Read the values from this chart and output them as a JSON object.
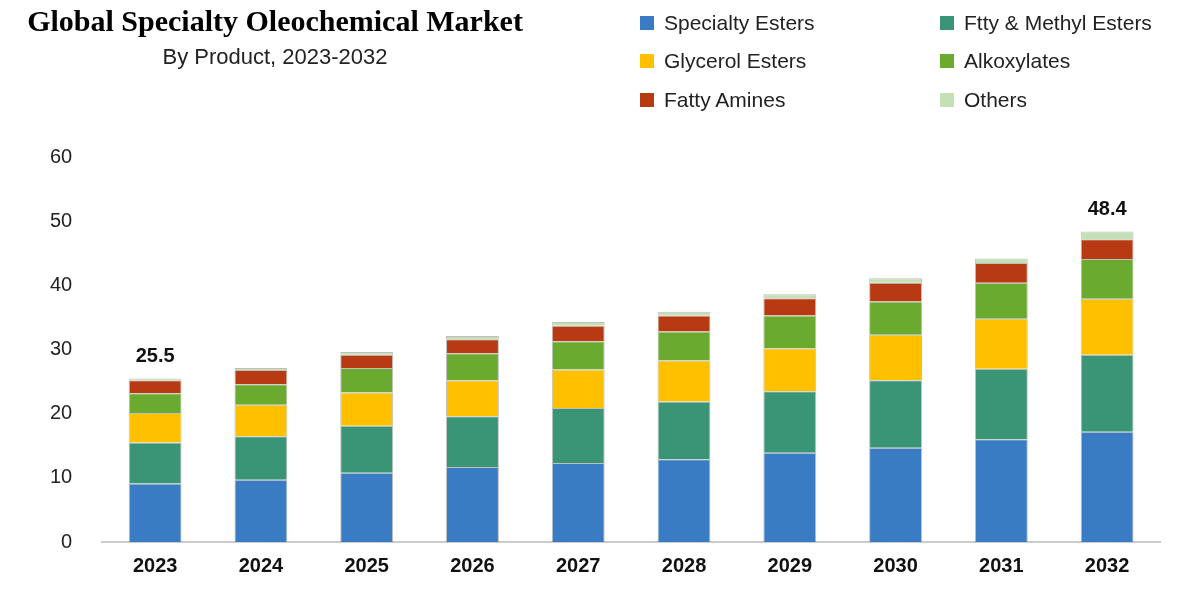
{
  "chart_data": {
    "type": "bar",
    "title": "Global Specialty Oleochemical Market",
    "subtitle": "By Product, 2023-2032",
    "categories": [
      "2023",
      "2024",
      "2025",
      "2026",
      "2027",
      "2028",
      "2029",
      "2030",
      "2031",
      "2032"
    ],
    "stacked": true,
    "legend": "top right",
    "grid": false,
    "ylim": [
      0,
      60
    ],
    "yticks": [
      0,
      10,
      20,
      30,
      40,
      50,
      60
    ],
    "totals": [
      "25.5",
      null,
      null,
      null,
      null,
      null,
      null,
      null,
      null,
      "48.4"
    ],
    "series": [
      {
        "name": "Specialty Esters",
        "color": "#3a7cc4",
        "values": [
          9.1,
          9.7,
          10.8,
          11.7,
          12.3,
          12.9,
          13.9,
          14.7,
          16.0,
          17.2
        ]
      },
      {
        "name": "Ftty & Methyl Esters",
        "color": "#3a9577",
        "values": [
          6.4,
          6.8,
          7.3,
          7.9,
          8.6,
          9.0,
          9.6,
          10.5,
          11.0,
          12.0
        ]
      },
      {
        "name": "Glycerol Esters",
        "color": "#ffc000",
        "values": [
          4.6,
          4.9,
          5.2,
          5.6,
          6.0,
          6.4,
          6.7,
          7.1,
          7.8,
          8.7
        ]
      },
      {
        "name": "Alkoxylates",
        "color": "#6aaa2e",
        "values": [
          3.1,
          3.2,
          3.8,
          4.2,
          4.4,
          4.5,
          5.1,
          5.2,
          5.6,
          6.2
        ]
      },
      {
        "name": "Fatty Amines",
        "color": "#b83a12",
        "values": [
          2.0,
          2.2,
          2.1,
          2.2,
          2.4,
          2.5,
          2.7,
          2.9,
          3.1,
          3.1
        ]
      },
      {
        "name": "Others",
        "color": "#c5e0b4",
        "values": [
          0.3,
          0.3,
          0.4,
          0.5,
          0.6,
          0.6,
          0.6,
          0.7,
          0.7,
          1.2
        ]
      }
    ]
  }
}
